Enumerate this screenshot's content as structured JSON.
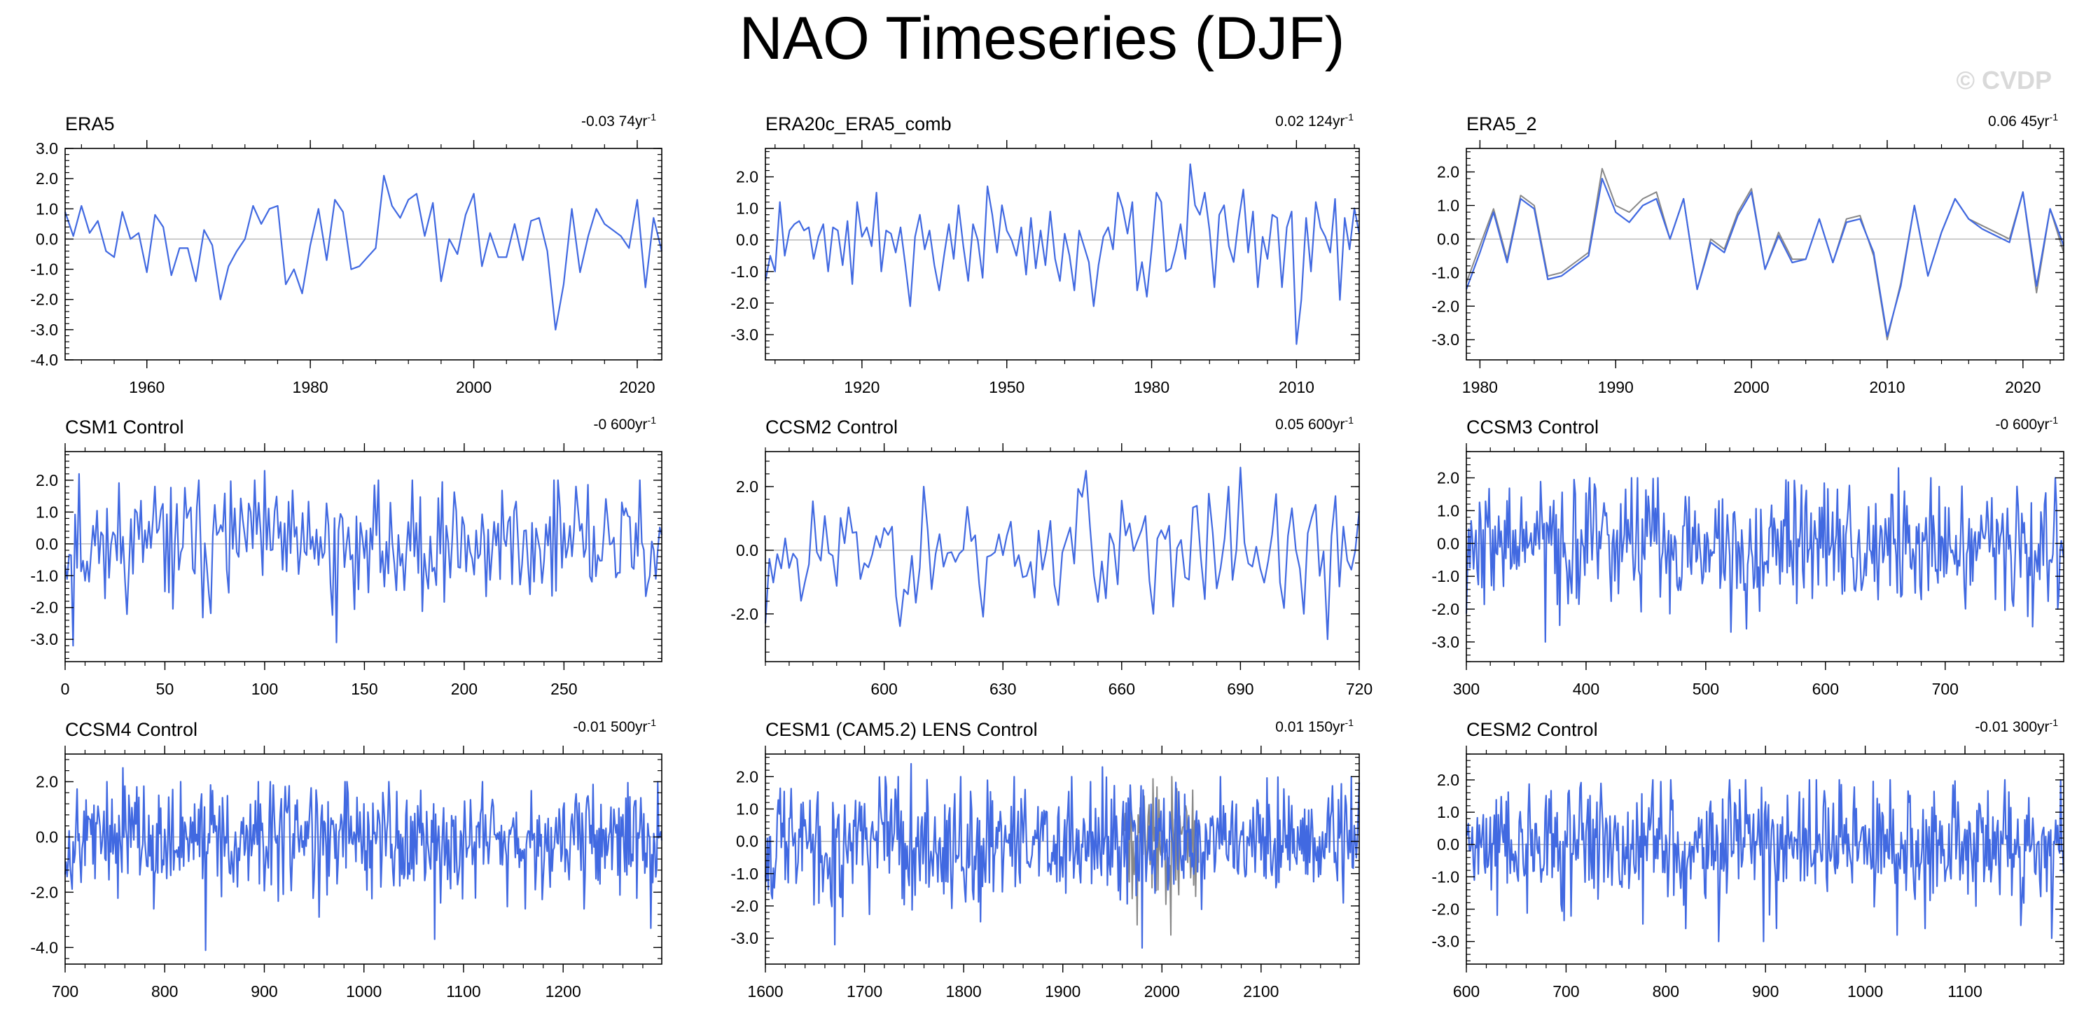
{
  "title": "NAO Timeseries (DJF)",
  "watermark": "© CVDP",
  "colors": {
    "primary": "#4169e1",
    "secondary": "#888888",
    "axis": "#000000",
    "zero_line": "#aaaaaa"
  },
  "chart_data": [
    {
      "type": "line",
      "title": "ERA5",
      "trend": {
        "value": "-0.03 74yr",
        "superscript": "-1"
      },
      "xlim": [
        1950,
        2023
      ],
      "ylim": [
        -4.0,
        3.0
      ],
      "xticks": [
        1960,
        1980,
        2000,
        2020
      ],
      "yticks": [
        "3.0",
        "2.0",
        "1.0",
        "0.0",
        "-1.0",
        "-2.0",
        "-3.0",
        "-4.0"
      ],
      "series": [
        {
          "color": "primary",
          "x": [
            1950,
            1951,
            1952,
            1953,
            1954,
            1955,
            1956,
            1957,
            1958,
            1959,
            1960,
            1961,
            1962,
            1963,
            1964,
            1965,
            1966,
            1967,
            1968,
            1969,
            1970,
            1971,
            1972,
            1973,
            1974,
            1975,
            1976,
            1977,
            1978,
            1979,
            1980,
            1981,
            1982,
            1983,
            1984,
            1985,
            1986,
            1987,
            1988,
            1989,
            1990,
            1991,
            1992,
            1993,
            1994,
            1995,
            1996,
            1997,
            1998,
            1999,
            2000,
            2001,
            2002,
            2003,
            2004,
            2005,
            2006,
            2007,
            2008,
            2009,
            2010,
            2011,
            2012,
            2013,
            2014,
            2015,
            2016,
            2017,
            2018,
            2019,
            2020,
            2021,
            2022,
            2023
          ],
          "y": [
            0.9,
            0.1,
            1.1,
            0.2,
            0.6,
            -0.4,
            -0.6,
            0.9,
            0.0,
            0.2,
            -1.1,
            0.8,
            0.4,
            -1.2,
            -0.3,
            -0.3,
            -1.4,
            0.3,
            -0.2,
            -2.0,
            -0.9,
            -0.4,
            0.0,
            1.1,
            0.5,
            1.0,
            1.1,
            -1.5,
            -1.0,
            -1.8,
            -0.2,
            1.0,
            -0.7,
            1.3,
            0.9,
            -1.0,
            -0.9,
            -0.6,
            -0.3,
            2.1,
            1.1,
            0.7,
            1.3,
            1.5,
            0.1,
            1.2,
            -1.4,
            0.0,
            -0.5,
            0.8,
            1.5,
            -0.9,
            0.2,
            -0.6,
            -0.6,
            0.5,
            -0.7,
            0.6,
            0.7,
            -0.4,
            -3.0,
            -1.5,
            1.0,
            -1.1,
            0.1,
            1.0,
            0.5,
            0.3,
            0.1,
            -0.3,
            1.3,
            -1.6,
            0.7,
            -0.4
          ]
        }
      ]
    },
    {
      "type": "line",
      "title": "ERA20c_ERA5_comb",
      "trend": {
        "value": "0.02 124yr",
        "superscript": "-1"
      },
      "xlim": [
        1900,
        2023
      ],
      "ylim": [
        -3.8,
        2.9
      ],
      "xticks": [
        1920,
        1950,
        1980,
        2010
      ],
      "yticks": [
        "2.0",
        "1.0",
        "0.0",
        "-1.0",
        "-2.0",
        "-3.0"
      ],
      "series": [
        {
          "color": "primary",
          "x": [
            1900,
            1901,
            1902,
            1903,
            1904,
            1905,
            1906,
            1907,
            1908,
            1909,
            1910,
            1911,
            1912,
            1913,
            1914,
            1915,
            1916,
            1917,
            1918,
            1919,
            1920,
            1921,
            1922,
            1923,
            1924,
            1925,
            1926,
            1927,
            1928,
            1929,
            1930,
            1931,
            1932,
            1933,
            1934,
            1935,
            1936,
            1937,
            1938,
            1939,
            1940,
            1941,
            1942,
            1943,
            1944,
            1945,
            1946,
            1947,
            1948,
            1949,
            1950,
            1951,
            1952,
            1953,
            1954,
            1955,
            1956,
            1957,
            1958,
            1959,
            1960,
            1961,
            1962,
            1963,
            1964,
            1965,
            1966,
            1967,
            1968,
            1969,
            1970,
            1971,
            1972,
            1973,
            1974,
            1975,
            1976,
            1977,
            1978,
            1979,
            1980,
            1981,
            1982,
            1983,
            1984,
            1985,
            1986,
            1987,
            1988,
            1989,
            1990,
            1991,
            1992,
            1993,
            1994,
            1995,
            1996,
            1997,
            1998,
            1999,
            2000,
            2001,
            2002,
            2003,
            2004,
            2005,
            2006,
            2007,
            2008,
            2009,
            2010,
            2011,
            2012,
            2013,
            2014,
            2015,
            2016,
            2017,
            2018,
            2019,
            2020,
            2021,
            2022,
            2023
          ],
          "y": [
            -1.3,
            -0.5,
            -1.0,
            1.2,
            -0.5,
            0.3,
            0.5,
            0.6,
            0.3,
            0.4,
            -0.6,
            0.1,
            0.5,
            -1.0,
            0.4,
            0.3,
            -0.8,
            0.6,
            -1.4,
            1.2,
            0.1,
            0.4,
            -0.2,
            1.5,
            -1.0,
            0.3,
            0.2,
            -0.4,
            0.4,
            -0.8,
            -2.1,
            0.1,
            0.8,
            -0.3,
            0.3,
            -0.8,
            -1.6,
            -0.5,
            0.5,
            -0.6,
            1.1,
            -0.2,
            -1.3,
            0.5,
            0.0,
            -1.2,
            1.7,
            0.8,
            -0.4,
            1.1,
            0.3,
            0.0,
            -0.5,
            0.4,
            -1.1,
            0.7,
            -0.9,
            0.3,
            -0.8,
            0.9,
            -0.6,
            -1.3,
            0.2,
            -0.5,
            -1.6,
            0.3,
            -0.2,
            -0.7,
            -2.1,
            -0.8,
            0.1,
            0.4,
            -0.3,
            1.5,
            1.0,
            0.2,
            1.2,
            -1.6,
            -0.7,
            -1.8,
            -0.3,
            1.5,
            1.2,
            -1.0,
            -0.9,
            -0.3,
            0.5,
            -0.6,
            2.4,
            1.1,
            0.8,
            1.5,
            0.3,
            -1.5,
            0.8,
            1.1,
            -0.2,
            -0.7,
            0.6,
            1.6,
            -0.4,
            0.9,
            -1.5,
            0.1,
            -0.6,
            0.8,
            0.7,
            -1.5,
            0.4,
            0.9,
            -3.3,
            -1.9,
            0.7,
            -1.0,
            1.2,
            0.4,
            0.1,
            -0.4,
            1.3,
            -1.9,
            0.7,
            -0.3,
            1.0,
            0.2
          ]
        }
      ]
    },
    {
      "type": "line",
      "title": "ERA5_2",
      "trend": {
        "value": "0.06 45yr",
        "superscript": "-1"
      },
      "xlim": [
        1979,
        2023
      ],
      "ylim": [
        -3.6,
        2.7
      ],
      "xticks": [
        1980,
        1990,
        2000,
        2010,
        2020
      ],
      "yticks": [
        "2.0",
        "1.0",
        "0.0",
        "-1.0",
        "-2.0",
        "-3.0"
      ],
      "series": [
        {
          "color": "secondary",
          "x": [
            1979,
            1980,
            1981,
            1982,
            1983,
            1984,
            1985,
            1986,
            1987,
            1988,
            1989,
            1990,
            1991,
            1992,
            1993,
            1994,
            1995,
            1996,
            1997,
            1998,
            1999,
            2000,
            2001,
            2002,
            2003,
            2004,
            2005,
            2006,
            2007,
            2008,
            2009,
            2010,
            2011,
            2012,
            2013,
            2014,
            2015,
            2016,
            2017,
            2018,
            2019,
            2020,
            2021,
            2022,
            2023
          ],
          "y": [
            -1.3,
            -0.2,
            0.9,
            -0.6,
            1.3,
            1.0,
            -1.1,
            -1.0,
            -0.7,
            -0.4,
            2.1,
            1.0,
            0.8,
            1.2,
            1.4,
            0.0,
            1.2,
            -1.5,
            0.0,
            -0.3,
            0.8,
            1.5,
            -0.9,
            0.2,
            -0.6,
            -0.6,
            0.6,
            -0.7,
            0.6,
            0.7,
            -0.5,
            -3.0,
            -1.3,
            1.0,
            -1.1,
            0.2,
            1.2,
            0.6,
            0.4,
            0.2,
            0.0,
            1.4,
            -1.6,
            0.9,
            -0.4
          ]
        },
        {
          "color": "primary",
          "x": [
            1979,
            1980,
            1981,
            1982,
            1983,
            1984,
            1985,
            1986,
            1987,
            1988,
            1989,
            1990,
            1991,
            1992,
            1993,
            1994,
            1995,
            1996,
            1997,
            1998,
            1999,
            2000,
            2001,
            2002,
            2003,
            2004,
            2005,
            2006,
            2007,
            2008,
            2009,
            2010,
            2011,
            2012,
            2013,
            2014,
            2015,
            2016,
            2017,
            2018,
            2019,
            2020,
            2021,
            2022,
            2023
          ],
          "y": [
            -1.5,
            -0.4,
            0.8,
            -0.7,
            1.2,
            0.9,
            -1.2,
            -1.1,
            -0.8,
            -0.5,
            1.8,
            0.8,
            0.5,
            1.0,
            1.2,
            0.0,
            1.2,
            -1.5,
            -0.1,
            -0.4,
            0.7,
            1.4,
            -0.9,
            0.1,
            -0.7,
            -0.6,
            0.6,
            -0.7,
            0.5,
            0.6,
            -0.4,
            -2.9,
            -1.4,
            1.0,
            -1.1,
            0.2,
            1.2,
            0.6,
            0.3,
            0.1,
            -0.1,
            1.4,
            -1.4,
            0.9,
            -0.2
          ]
        }
      ]
    },
    {
      "type": "line",
      "title": "CSM1 Control",
      "trend": {
        "value": "-0 600yr",
        "superscript": "-1"
      },
      "xlim": [
        0,
        299
      ],
      "ylim": [
        -3.7,
        2.9
      ],
      "xticks": [
        0,
        50,
        100,
        150,
        200,
        250
      ],
      "yticks": [
        "2.0",
        "1.0",
        "0.0",
        "-1.0",
        "-2.0",
        "-3.0"
      ],
      "series": [
        {
          "color": "primary",
          "n": 300,
          "x0": 0,
          "seed": 11,
          "sd": 0.95,
          "extremes": [
            [
              4,
              -3.2
            ],
            [
              7,
              2.2
            ],
            [
              100,
              2.3
            ],
            [
              136,
              -3.1
            ],
            [
              247,
              2.0
            ]
          ]
        }
      ]
    },
    {
      "type": "line",
      "title": "CCSM2 Control",
      "trend": {
        "value": "0.05 600yr",
        "superscript": "-1"
      },
      "xlim": [
        570,
        720
      ],
      "ylim": [
        -3.5,
        3.1
      ],
      "xticks": [
        600,
        630,
        660,
        690,
        720
      ],
      "yticks": [
        "2.0",
        "0.0",
        "-2.0"
      ],
      "series": [
        {
          "color": "primary",
          "n": 151,
          "x0": 570,
          "seed": 23,
          "sd": 0.95,
          "extremes": [
            [
              570,
              -2.3
            ],
            [
              651,
              2.5
            ],
            [
              668,
              -2.0
            ],
            [
              690,
              2.6
            ],
            [
              712,
              -2.8
            ],
            [
              706,
              -2.0
            ]
          ]
        }
      ]
    },
    {
      "type": "line",
      "title": "CCSM3 Control",
      "trend": {
        "value": "-0 600yr",
        "superscript": "-1"
      },
      "xlim": [
        300,
        799
      ],
      "ylim": [
        -3.6,
        2.8
      ],
      "xticks": [
        300,
        400,
        500,
        600,
        700
      ],
      "yticks": [
        "2.0",
        "1.0",
        "0.0",
        "-1.0",
        "-2.0",
        "-3.0"
      ],
      "series": [
        {
          "color": "primary",
          "n": 500,
          "x0": 300,
          "seed": 37,
          "sd": 0.95,
          "extremes": [
            [
              366,
              -3.0
            ],
            [
              521,
              -2.7
            ],
            [
              661,
              2.3
            ],
            [
              792,
              2.0
            ]
          ]
        }
      ]
    },
    {
      "type": "line",
      "title": "CCSM4 Control",
      "trend": {
        "value": "-0.01 500yr",
        "superscript": "-1"
      },
      "xlim": [
        700,
        1299
      ],
      "ylim": [
        -4.6,
        3.0
      ],
      "xticks": [
        700,
        800,
        900,
        1000,
        1100,
        1200
      ],
      "yticks": [
        "2.0",
        "0.0",
        "-2.0",
        "-4.0"
      ],
      "series": [
        {
          "color": "primary",
          "n": 600,
          "x0": 700,
          "seed": 53,
          "sd": 1.0,
          "extremes": [
            [
              758,
              2.5
            ],
            [
              841,
              -4.1
            ],
            [
              1071,
              -3.7
            ],
            [
              1288,
              -3.3
            ],
            [
              955,
              -2.9
            ]
          ]
        }
      ]
    },
    {
      "type": "line",
      "title": "CESM1 (CAM5.2) LENS Control",
      "trend": {
        "value": "0.01 150yr",
        "superscript": "-1"
      },
      "xlim": [
        1600,
        2199
      ],
      "ylim": [
        -3.8,
        2.7
      ],
      "xticks": [
        1600,
        1700,
        1800,
        1900,
        2000,
        2100
      ],
      "yticks": [
        "2.0",
        "1.0",
        "0.0",
        "-1.0",
        "-2.0",
        "-3.0"
      ],
      "series": [
        {
          "color": "secondary",
          "n": 78,
          "x0": 1960,
          "seed": 71,
          "sd": 1.0,
          "extremes": [
            [
              2009,
              -2.9
            ],
            [
              1982,
              1.4
            ]
          ]
        },
        {
          "color": "primary",
          "n": 600,
          "x0": 1600,
          "seed": 67,
          "sd": 0.95,
          "extremes": [
            [
              1670,
              -3.2
            ],
            [
              1980,
              -3.3
            ],
            [
              1747,
              2.4
            ],
            [
              1940,
              2.3
            ]
          ]
        }
      ]
    },
    {
      "type": "line",
      "title": "CESM2 Control",
      "trend": {
        "value": "-0.01 300yr",
        "superscript": "-1"
      },
      "xlim": [
        600,
        1199
      ],
      "ylim": [
        -3.7,
        2.8
      ],
      "xticks": [
        600,
        700,
        800,
        900,
        1000,
        1100
      ],
      "yticks": [
        "2.0",
        "1.0",
        "0.0",
        "-1.0",
        "-2.0",
        "-3.0"
      ],
      "series": [
        {
          "color": "primary",
          "n": 600,
          "x0": 600,
          "seed": 89,
          "sd": 0.95,
          "extremes": [
            [
              853,
              -3.0
            ],
            [
              898,
              -3.0
            ],
            [
              1187,
              -2.9
            ],
            [
              1032,
              -2.8
            ],
            [
              787,
              2.0
            ]
          ]
        }
      ]
    }
  ]
}
